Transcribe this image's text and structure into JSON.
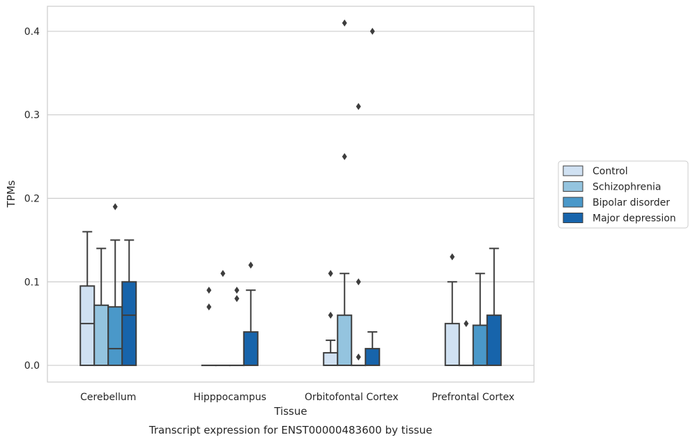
{
  "chart_data": {
    "type": "box",
    "title": "",
    "caption": "Transcript expression for ENST00000483600 by tissue",
    "xlabel": "Tissue",
    "ylabel": "TPMs",
    "ylim": [
      -0.02,
      0.43
    ],
    "yticks": [
      0.0,
      0.1,
      0.2,
      0.3,
      0.4
    ],
    "ytick_labels": [
      "0.0",
      "0.1",
      "0.2",
      "0.3",
      "0.4"
    ],
    "grid": "horizontal",
    "legend_position": "right",
    "categories": [
      "Cerebellum",
      "Hipppocampus",
      "Orbitofontal Cortex",
      "Prefrontal Cortex"
    ],
    "series": [
      {
        "name": "Control",
        "color": "#d0e1f2",
        "boxes": [
          {
            "q1": 0.0,
            "median": 0.05,
            "q3": 0.095,
            "whisker_low": 0.0,
            "whisker_high": 0.16,
            "outliers": []
          },
          {
            "q1": 0.0,
            "median": 0.0,
            "q3": 0.0,
            "whisker_low": 0.0,
            "whisker_high": 0.0,
            "outliers": [
              0.07,
              0.09
            ]
          },
          {
            "q1": 0.0,
            "median": 0.0,
            "q3": 0.015,
            "whisker_low": 0.0,
            "whisker_high": 0.03,
            "outliers": [
              0.06,
              0.11
            ]
          },
          {
            "q1": 0.0,
            "median": 0.0,
            "q3": 0.05,
            "whisker_low": 0.0,
            "whisker_high": 0.1,
            "outliers": [
              0.13
            ]
          }
        ]
      },
      {
        "name": "Schizophrenia",
        "color": "#94c4df",
        "boxes": [
          {
            "q1": 0.0,
            "median": 0.0,
            "q3": 0.072,
            "whisker_low": 0.0,
            "whisker_high": 0.14,
            "outliers": []
          },
          {
            "q1": 0.0,
            "median": 0.0,
            "q3": 0.0,
            "whisker_low": 0.0,
            "whisker_high": 0.0,
            "outliers": [
              0.11
            ]
          },
          {
            "q1": 0.0,
            "median": 0.0,
            "q3": 0.06,
            "whisker_low": 0.0,
            "whisker_high": 0.11,
            "outliers": [
              0.25,
              0.41
            ]
          },
          {
            "q1": 0.0,
            "median": 0.0,
            "q3": 0.0,
            "whisker_low": 0.0,
            "whisker_high": 0.0,
            "outliers": [
              0.05
            ]
          }
        ]
      },
      {
        "name": "Bipolar disorder",
        "color": "#4a98c9",
        "boxes": [
          {
            "q1": 0.0,
            "median": 0.02,
            "q3": 0.07,
            "whisker_low": 0.0,
            "whisker_high": 0.15,
            "outliers": [
              0.19
            ]
          },
          {
            "q1": 0.0,
            "median": 0.0,
            "q3": 0.0,
            "whisker_low": 0.0,
            "whisker_high": 0.0,
            "outliers": [
              0.08,
              0.09
            ]
          },
          {
            "q1": 0.0,
            "median": 0.0,
            "q3": 0.0,
            "whisker_low": 0.0,
            "whisker_high": 0.0,
            "outliers": [
              0.01,
              0.1,
              0.31
            ]
          },
          {
            "q1": 0.0,
            "median": 0.0,
            "q3": 0.048,
            "whisker_low": 0.0,
            "whisker_high": 0.11,
            "outliers": []
          }
        ]
      },
      {
        "name": "Major depression",
        "color": "#1764ab",
        "boxes": [
          {
            "q1": 0.0,
            "median": 0.06,
            "q3": 0.1,
            "whisker_low": 0.0,
            "whisker_high": 0.15,
            "outliers": []
          },
          {
            "q1": 0.0,
            "median": 0.0,
            "q3": 0.04,
            "whisker_low": 0.0,
            "whisker_high": 0.09,
            "outliers": [
              0.12
            ]
          },
          {
            "q1": 0.0,
            "median": 0.0,
            "q3": 0.02,
            "whisker_low": 0.0,
            "whisker_high": 0.04,
            "outliers": [
              0.4
            ]
          },
          {
            "q1": 0.0,
            "median": 0.0,
            "q3": 0.06,
            "whisker_low": 0.0,
            "whisker_high": 0.14,
            "outliers": []
          }
        ]
      }
    ]
  }
}
